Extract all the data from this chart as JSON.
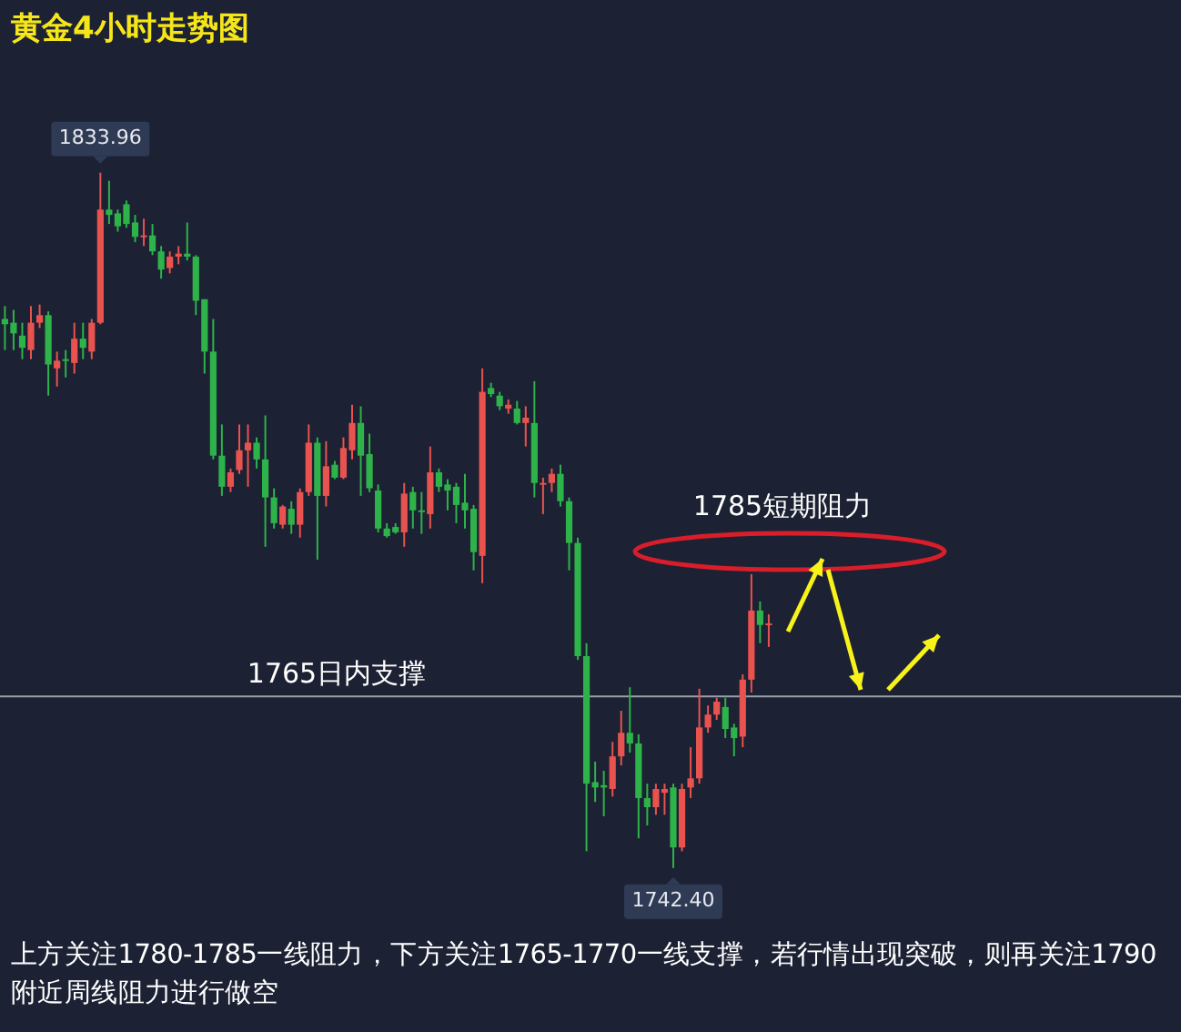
{
  "chart_data": {
    "type": "candlestick",
    "title": "黄金4小时走势图",
    "categories": [
      null,
      null,
      null,
      null,
      null,
      null,
      null,
      null,
      null,
      null,
      null,
      null,
      null,
      null,
      null,
      null,
      null,
      null,
      null,
      null,
      null,
      null,
      null,
      null,
      null,
      null,
      null,
      null,
      null,
      null,
      null,
      null,
      null,
      null,
      null,
      null,
      null,
      null,
      null,
      null,
      null,
      null,
      null,
      null,
      null,
      null,
      null,
      null,
      null,
      null,
      null,
      null,
      null,
      null,
      null,
      null,
      null,
      null,
      null,
      null,
      null,
      null,
      null,
      null,
      null,
      null,
      null,
      null,
      null,
      null,
      null,
      null,
      null,
      null,
      null,
      null,
      null,
      null,
      null,
      null,
      null,
      null,
      null,
      null,
      null,
      null,
      null,
      null,
      null
    ],
    "ohlc": [
      [
        1814.7,
        1816.4,
        1810.6,
        1814.0
      ],
      [
        1814.2,
        1815.9,
        1810.6,
        1812.8
      ],
      [
        1812.5,
        1814.2,
        1809.4,
        1810.9
      ],
      [
        1810.6,
        1816.4,
        1809.4,
        1814.2
      ],
      [
        1814.2,
        1816.6,
        1813.5,
        1815.2
      ],
      [
        1815.2,
        1815.7,
        1804.6,
        1808.7
      ],
      [
        1808.2,
        1810.4,
        1805.8,
        1809.2
      ],
      [
        1809.4,
        1810.6,
        1807.0,
        1809.2
      ],
      [
        1808.9,
        1814.2,
        1807.5,
        1812.1
      ],
      [
        1812.1,
        1814.2,
        1809.4,
        1810.9
      ],
      [
        1810.4,
        1814.7,
        1809.4,
        1814.2
      ],
      [
        1814.2,
        1833.96,
        1814.0,
        1829.1
      ],
      [
        1829.1,
        1832.9,
        1827.2,
        1828.4
      ],
      [
        1828.6,
        1829.1,
        1826.2,
        1826.9
      ],
      [
        1829.8,
        1830.3,
        1826.7,
        1827.2
      ],
      [
        1827.4,
        1828.4,
        1824.8,
        1825.5
      ],
      [
        1825.5,
        1827.9,
        1824.3,
        1825.7
      ],
      [
        1825.7,
        1827.2,
        1823.1,
        1823.6
      ],
      [
        1823.6,
        1824.3,
        1820.0,
        1821.2
      ],
      [
        1821.4,
        1823.6,
        1820.7,
        1822.9
      ],
      [
        1822.9,
        1824.3,
        1821.9,
        1823.3
      ],
      [
        1823.3,
        1827.4,
        1822.4,
        1822.9
      ],
      [
        1822.9,
        1823.1,
        1815.2,
        1817.1
      ],
      [
        1817.3,
        1817.3,
        1807.5,
        1810.4
      ],
      [
        1810.4,
        1814.7,
        1796.2,
        1796.7
      ],
      [
        1796.7,
        1800.8,
        1791.4,
        1792.6
      ],
      [
        1792.6,
        1795.0,
        1791.9,
        1794.5
      ],
      [
        1794.8,
        1800.8,
        1794.3,
        1797.4
      ],
      [
        1797.4,
        1800.8,
        1792.6,
        1798.4
      ],
      [
        1798.4,
        1799.1,
        1795.0,
        1796.2
      ],
      [
        1796.2,
        1802.0,
        1784.7,
        1791.2
      ],
      [
        1791.2,
        1792.4,
        1787.1,
        1787.8
      ],
      [
        1787.6,
        1790.2,
        1787.1,
        1790.0
      ],
      [
        1789.7,
        1790.7,
        1786.4,
        1787.6
      ],
      [
        1787.6,
        1792.4,
        1785.9,
        1791.9
      ],
      [
        1791.9,
        1800.8,
        1791.4,
        1798.4
      ],
      [
        1798.4,
        1799.1,
        1783.0,
        1791.4
      ],
      [
        1791.4,
        1798.6,
        1790.0,
        1795.3
      ],
      [
        1795.5,
        1796.0,
        1793.6,
        1793.8
      ],
      [
        1793.8,
        1799.1,
        1793.6,
        1797.7
      ],
      [
        1797.4,
        1803.4,
        1796.2,
        1801.0
      ],
      [
        1801.0,
        1803.2,
        1791.4,
        1796.7
      ],
      [
        1796.9,
        1799.6,
        1791.9,
        1792.4
      ],
      [
        1792.1,
        1792.9,
        1786.6,
        1787.1
      ],
      [
        1787.1,
        1787.8,
        1785.9,
        1786.1
      ],
      [
        1787.3,
        1787.8,
        1786.4,
        1786.6
      ],
      [
        1786.6,
        1793.1,
        1784.7,
        1791.7
      ],
      [
        1791.9,
        1792.6,
        1787.1,
        1789.5
      ],
      [
        1789.5,
        1791.9,
        1786.4,
        1789.3
      ],
      [
        1789.0,
        1797.9,
        1787.1,
        1794.5
      ],
      [
        1794.5,
        1795.0,
        1791.9,
        1792.6
      ],
      [
        1792.9,
        1793.6,
        1789.5,
        1792.1
      ],
      [
        1792.6,
        1793.1,
        1787.8,
        1790.2
      ],
      [
        1790.5,
        1794.3,
        1787.1,
        1789.5
      ],
      [
        1789.7,
        1790.2,
        1781.6,
        1784.0
      ],
      [
        1783.5,
        1808.2,
        1779.9,
        1805.1
      ],
      [
        1805.6,
        1806.3,
        1804.4,
        1804.8
      ],
      [
        1804.6,
        1805.1,
        1802.7,
        1803.2
      ],
      [
        1802.9,
        1804.1,
        1802.2,
        1803.4
      ],
      [
        1802.9,
        1803.9,
        1800.8,
        1801.0
      ],
      [
        1801.0,
        1803.2,
        1797.9,
        1801.7
      ],
      [
        1801.0,
        1806.5,
        1791.2,
        1793.1
      ],
      [
        1792.9,
        1793.8,
        1789.0,
        1793.1
      ],
      [
        1793.1,
        1795.0,
        1791.9,
        1794.3
      ],
      [
        1794.3,
        1795.5,
        1790.0,
        1790.7
      ],
      [
        1790.7,
        1791.2,
        1781.6,
        1785.2
      ],
      [
        1785.2,
        1785.9,
        1769.8,
        1770.3
      ],
      [
        1770.3,
        1772.0,
        1744.6,
        1753.5
      ],
      [
        1753.7,
        1756.4,
        1751.1,
        1753.0
      ],
      [
        1753.3,
        1755.2,
        1749.2,
        1753.0
      ],
      [
        1752.8,
        1759.0,
        1751.8,
        1757.1
      ],
      [
        1757.1,
        1763.1,
        1755.9,
        1760.2
      ],
      [
        1760.2,
        1766.2,
        1757.6,
        1758.8
      ],
      [
        1758.8,
        1760.0,
        1746.3,
        1751.6
      ],
      [
        1751.6,
        1753.5,
        1748.0,
        1750.4
      ],
      [
        1750.4,
        1753.5,
        1749.4,
        1752.8
      ],
      [
        1752.3,
        1753.5,
        1749.4,
        1752.8
      ],
      [
        1753.0,
        1753.5,
        1742.4,
        1745.1
      ],
      [
        1745.1,
        1753.5,
        1744.6,
        1752.8
      ],
      [
        1753.0,
        1758.3,
        1751.6,
        1754.2
      ],
      [
        1754.2,
        1766.0,
        1753.5,
        1760.9
      ],
      [
        1760.9,
        1763.8,
        1760.2,
        1762.6
      ],
      [
        1762.6,
        1764.8,
        1761.9,
        1764.3
      ],
      [
        1763.6,
        1764.8,
        1759.5,
        1760.7
      ],
      [
        1760.9,
        1761.4,
        1757.1,
        1759.5
      ],
      [
        1759.7,
        1767.9,
        1758.3,
        1767.2
      ],
      [
        1767.2,
        1781.1,
        1765.5,
        1776.3
      ],
      [
        1776.3,
        1777.5,
        1772.0,
        1774.4
      ],
      [
        1774.4,
        1775.8,
        1771.5,
        1774.6
      ]
    ],
    "ylim": [
      1720.8,
      1856.7
    ],
    "ref_lines": [
      {
        "axis": "y",
        "value": 1765,
        "label": "1765日内支撑",
        "color": "#9aa0a8"
      }
    ],
    "annotations": [
      {
        "text": "1833.96",
        "y": 1833.96
      },
      {
        "text": "1742.40",
        "y": 1742.4
      },
      "1785短期阻力",
      "上方关注1780-1785一线阻力，下方关注1765-1770一线支撑，若行情出现突破，则再关注1790附近周线阻力进行做空"
    ]
  }
}
